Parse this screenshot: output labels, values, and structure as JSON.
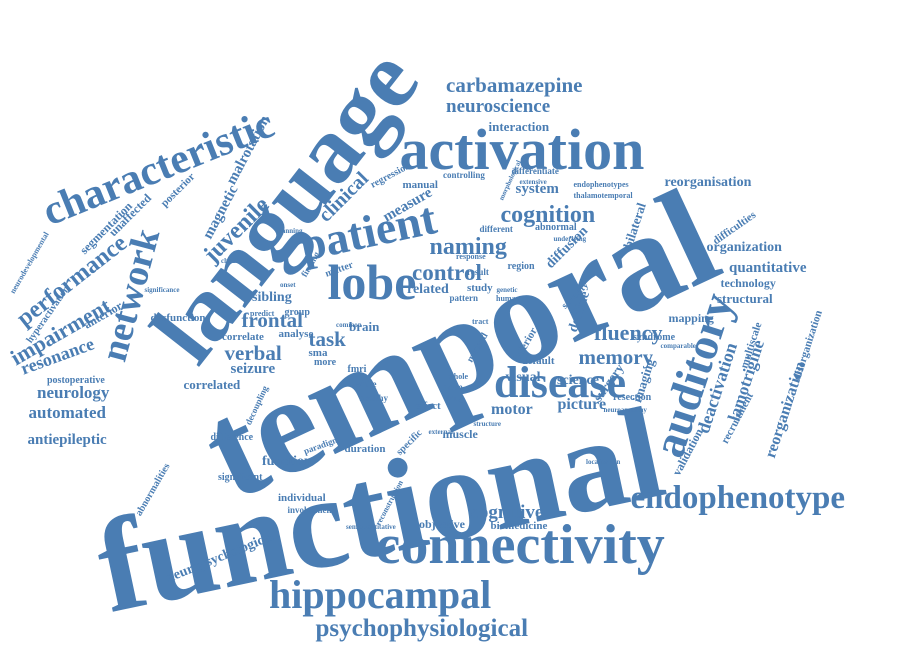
{
  "word_color": "#4a7db3",
  "words": {
    "functional": "functional",
    "temporal": "temporal",
    "language": "language",
    "activation": "activation",
    "connectivity": "connectivity",
    "characteristic": "characteristic",
    "patient": "patient",
    "lobe": "lobe",
    "disease": "disease",
    "auditory": "auditory",
    "endophenotype": "endophenotype",
    "hippocampal": "hippocampal",
    "psychophysiological": "psychophysiological",
    "network": "network",
    "carbamazepine": "carbamazepine",
    "neuroscience": "neuroscience",
    "cognition": "cognition",
    "naming": "naming",
    "control": "control",
    "fluency": "fluency",
    "memory": "memory",
    "frontal": "frontal",
    "verbal": "verbal",
    "juvenile": "juvenile",
    "performance": "performance",
    "impairment": "impairment",
    "cognitive": "cognitive",
    "neurology": "neurology",
    "automated": "automated",
    "antiepileptic": "antiepileptic",
    "seizure": "seizure",
    "task": "task",
    "resonance": "resonance",
    "clinical": "clinical",
    "magnetic": "magnetic",
    "malrotation": "malrotation",
    "reorganisation": "reorganisation",
    "system": "system",
    "quantitative": "quantitative",
    "organization": "organization",
    "deactivation": "deactivation",
    "lamotrigine": "lamotrigine",
    "reorganization": "reorganization",
    "structural": "structural",
    "interaction": "interaction",
    "sibling": "sibling",
    "measure": "measure",
    "neuropsychological": "neuropsychological",
    "function": "function",
    "picture": "picture",
    "visual": "visual",
    "science": "science",
    "motor": "motor",
    "imaging": "imaging",
    "decline": "decline",
    "diffusion": "diffusion",
    "related": "related",
    "brain": "brain",
    "bilateral": "bilateral",
    "unaffected": "unaffected",
    "segmentation": "segmentation",
    "posterior": "posterior",
    "anterior": "anterior",
    "dysfunction": "dysfunction",
    "correlate": "correlate",
    "correlated": "correlated",
    "analyse": "analyse",
    "sma": "sma",
    "objective": "objective",
    "biomedicine": "biomedicine",
    "muscle": "muscle",
    "duration": "duration",
    "individual": "individual",
    "involvement": "involvement",
    "postoperative": "postoperative",
    "difference": "difference",
    "significant": "significant",
    "abnormalities": "abnormalities",
    "hyperactivation": "hyperactivation",
    "neurodevelopmental": "neurodevelopmental",
    "validation": "validation",
    "recruitment": "recruitment",
    "technology": "technology",
    "mapping": "mapping",
    "difficulties": "difficulties",
    "disorganization": "disorganization",
    "multiscale": "multiscale",
    "surgery": "surgery",
    "resection": "resection",
    "effect": "effect",
    "default": "default",
    "syndrome": "syndrome",
    "severity": "severity",
    "inferior": "inferior",
    "abnormal": "abnormal",
    "manual": "manual",
    "regression": "regression",
    "controlling": "controlling",
    "differentiate": "differentiate",
    "endophenotypes": "endophenotypes",
    "thalamotemporal": "thalamotemporal",
    "group": "group",
    "more": "more",
    "fmri": "fmri",
    "white": "white",
    "healthy": "healthy",
    "mode": "mode",
    "drug": "drug",
    "result": "result",
    "study": "study",
    "pattern": "pattern",
    "region": "region",
    "different": "different",
    "matter": "matter",
    "finding": "finding",
    "tract": "tract",
    "method": "method",
    "whole": "whole",
    "specific": "specific",
    "paradigm": "paradigm",
    "decoupling": "decoupling",
    "predict": "predict",
    "planning": "planning",
    "reconstruction": "reconstruction",
    "semiquantitative": "semiquantitative",
    "human": "human",
    "genetic": "genetic",
    "comparable": "comparable",
    "underlying": "underlying",
    "extensive": "extensive",
    "response": "response",
    "external": "external",
    "structure": "structure",
    "neuroanatomy": "neuroanatomy",
    "localization": "localization",
    "significance": "significance",
    "morphological": "morphological",
    "common": "common",
    "onset": "onset",
    "childhood": "childhood"
  }
}
